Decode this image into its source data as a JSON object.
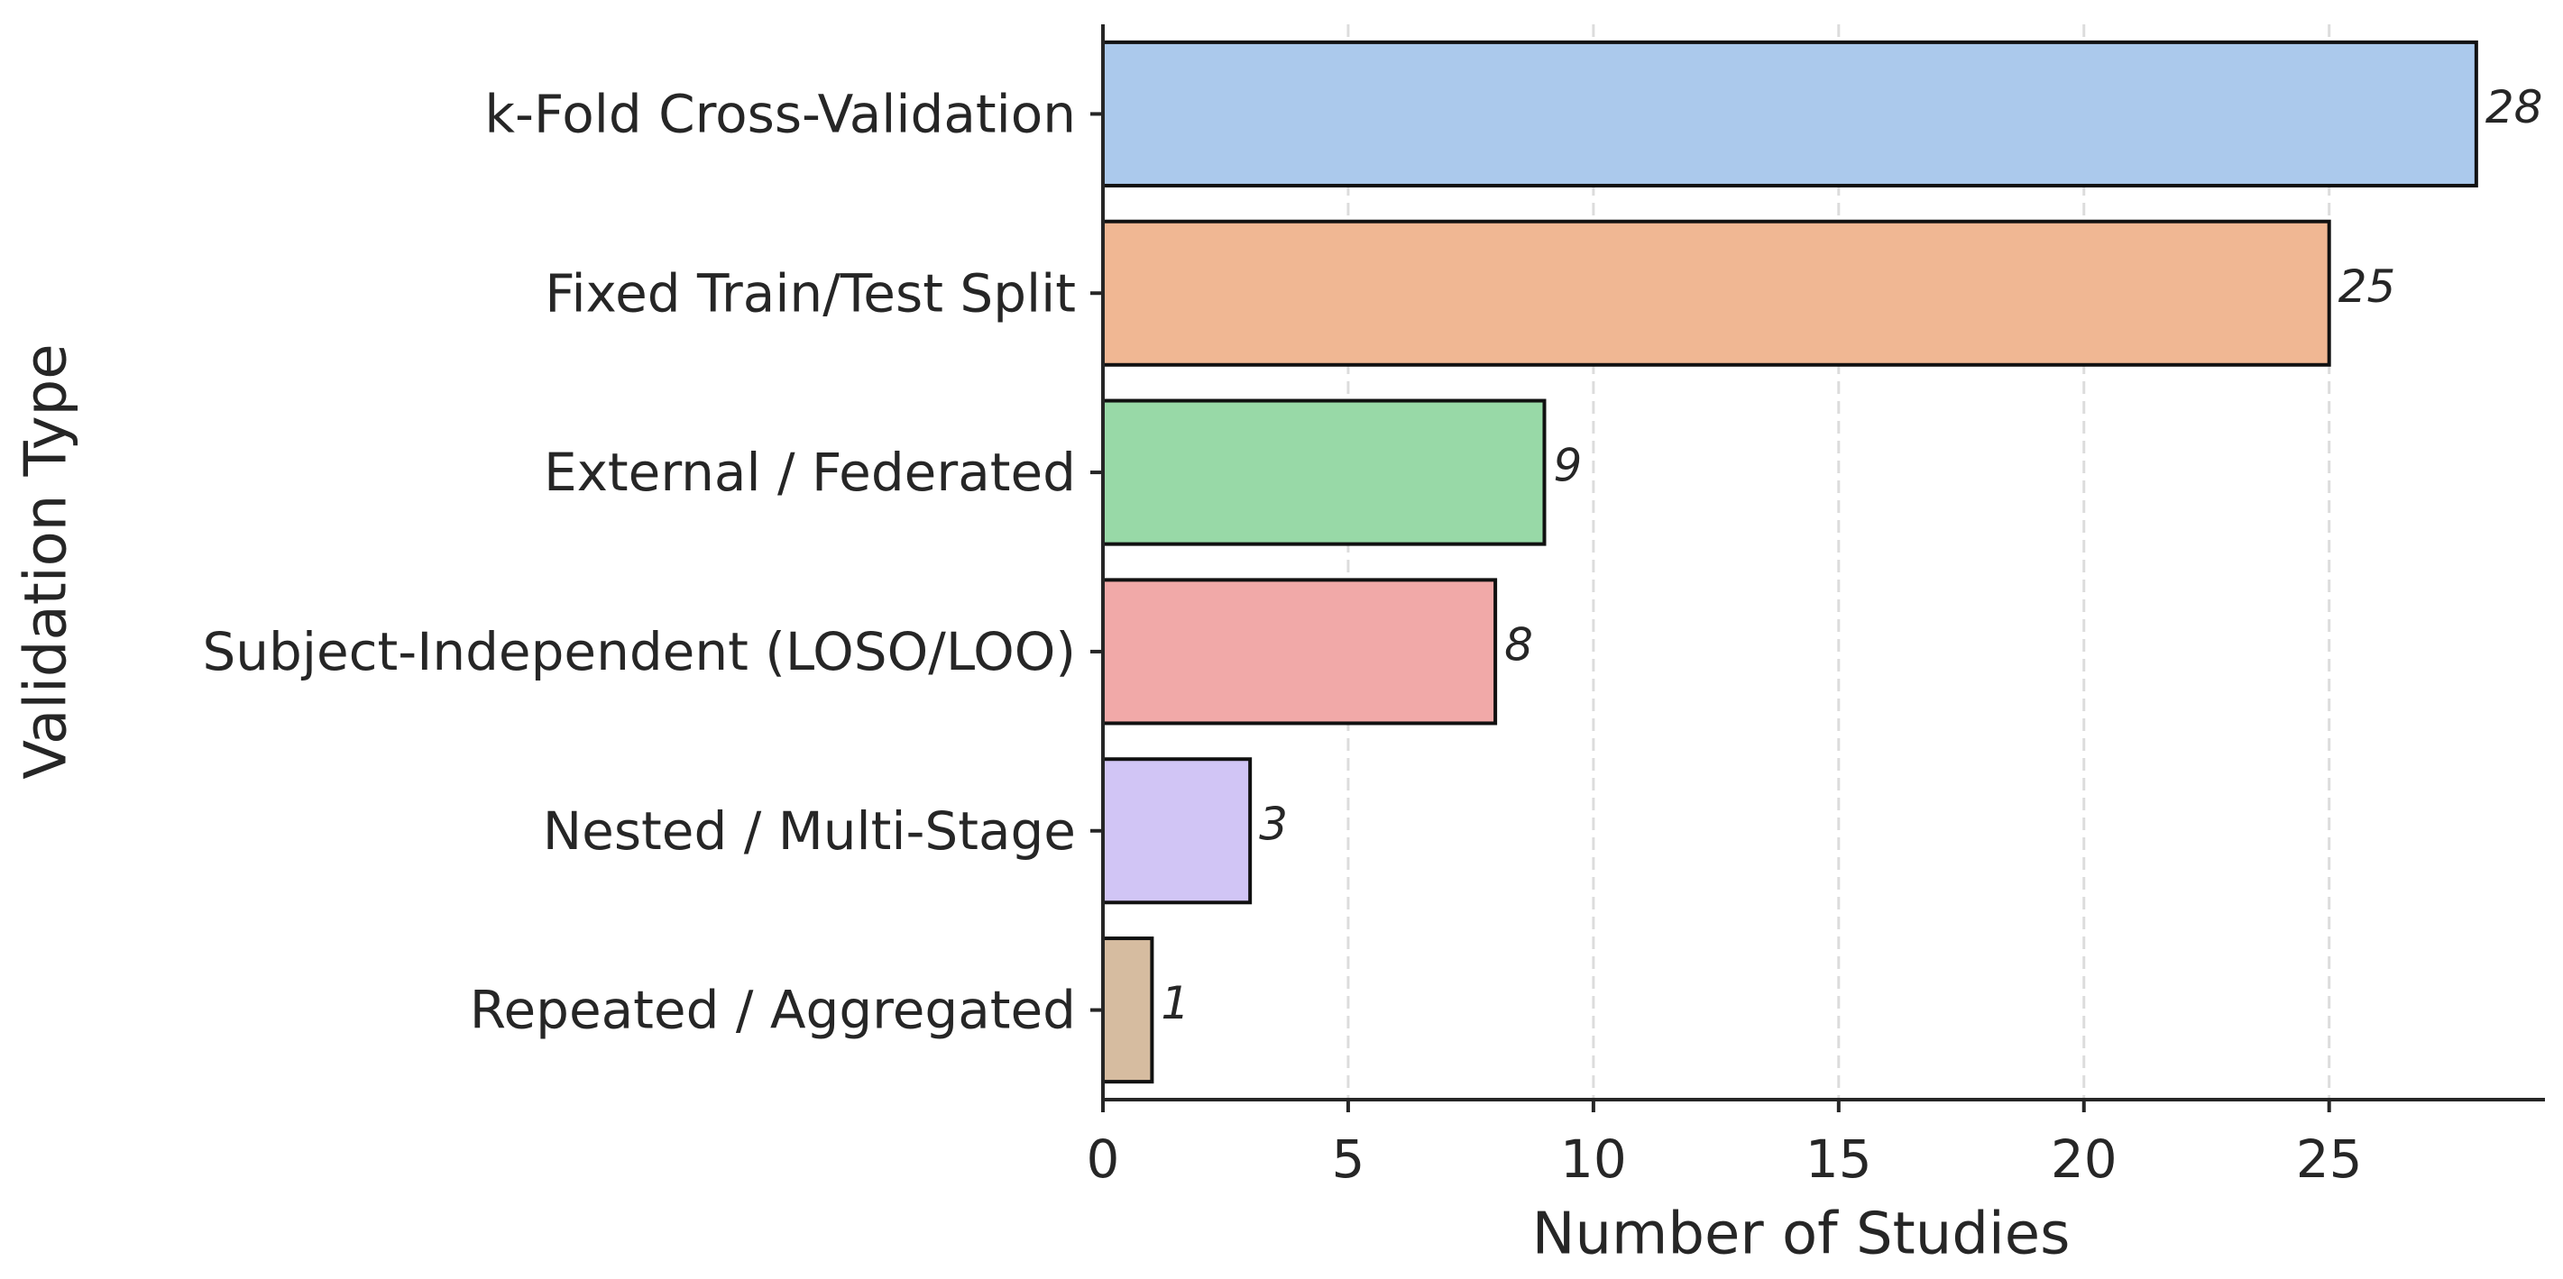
{
  "chart_data": {
    "type": "barh",
    "xlabel": "Number of Studies",
    "ylabel": "Validation Type",
    "categories": [
      "k-Fold Cross-Validation",
      "Fixed Train/Test Split",
      "External / Federated",
      "Subject-Independent (LOSO/LOO)",
      "Nested / Multi-Stage",
      "Repeated / Aggregated"
    ],
    "values": [
      28,
      25,
      9,
      8,
      3,
      1
    ],
    "colors": [
      "#abc9ec",
      "#f0b793",
      "#98d9a7",
      "#f1a9a8",
      "#d1c5f5",
      "#d6bca0"
    ],
    "xlim": [
      0,
      29.4
    ],
    "xticks": [
      0,
      5,
      10,
      15,
      20,
      25
    ],
    "grid": true
  }
}
